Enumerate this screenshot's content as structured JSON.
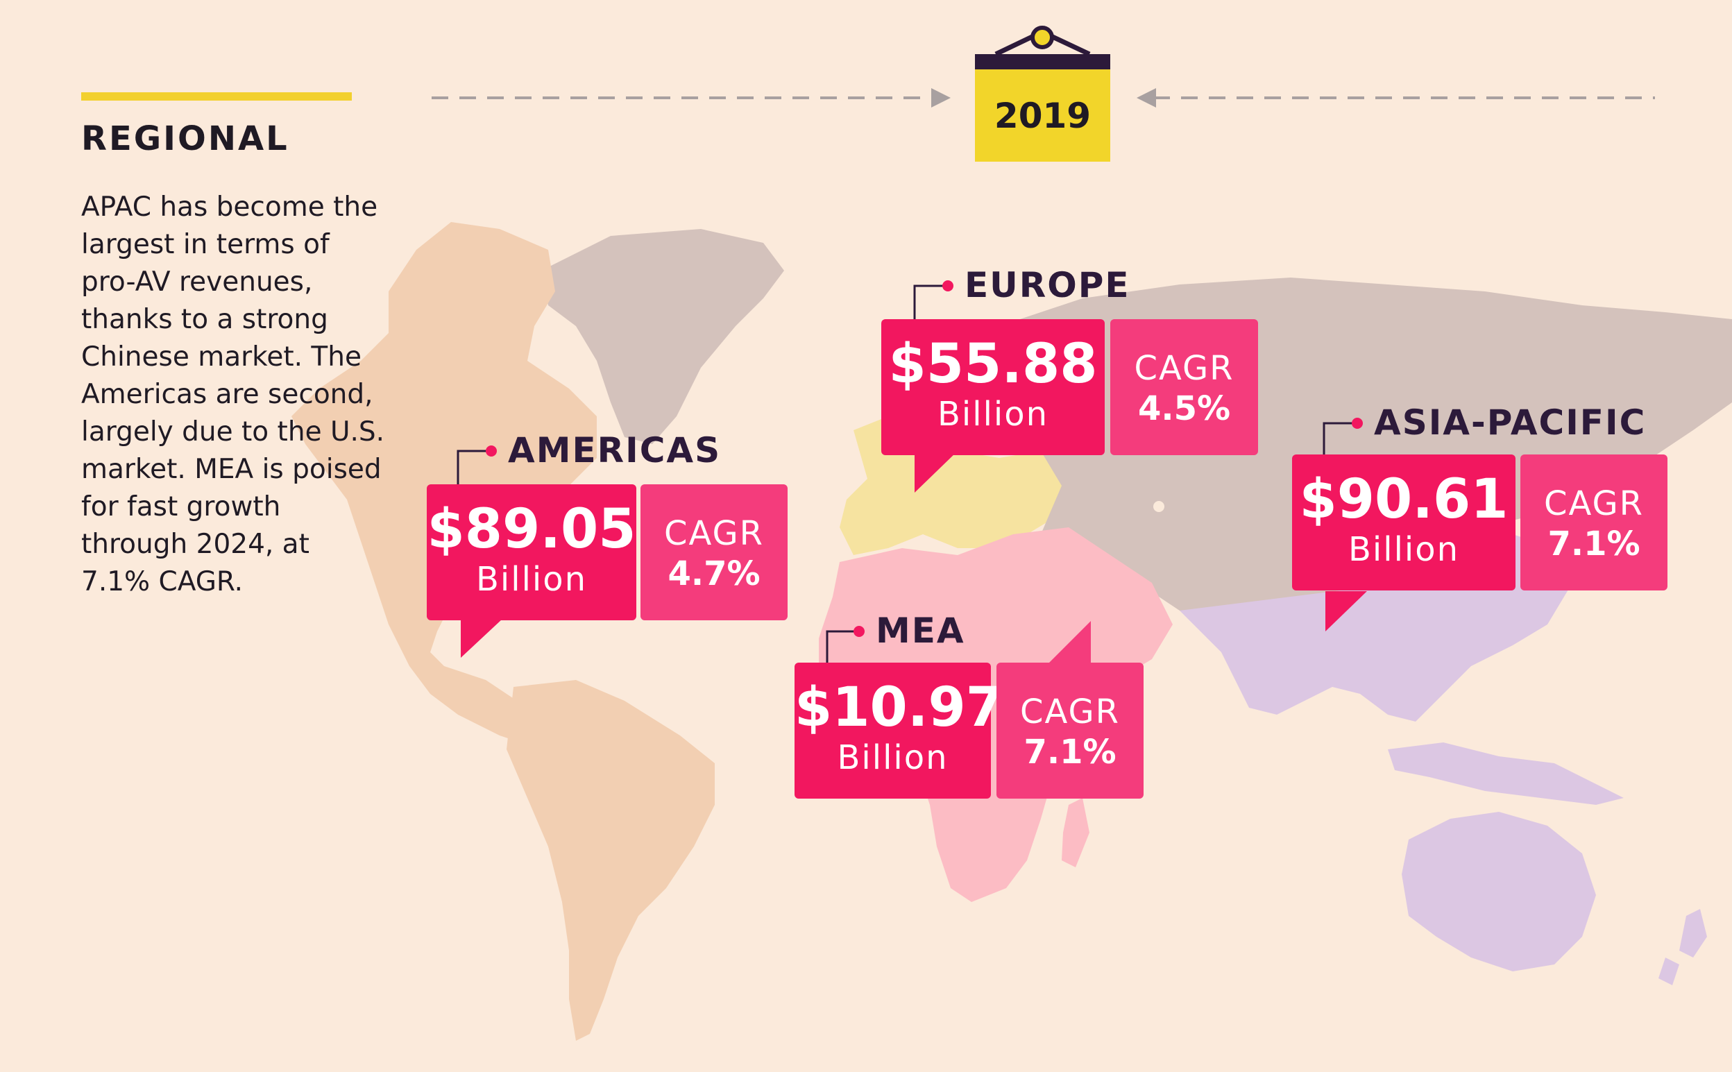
{
  "header": {
    "title": "REGIONAL",
    "intro": "APAC has become the largest in terms of pro-AV revenues, thanks to a strong Chinese market. The Americas are second, largely due to the U.S. market. MEA is poised for fast growth through 2024, at 7.1% CAGR.",
    "year": "2019"
  },
  "colors": {
    "background": "#fbeadb",
    "accent_yellow": "#f2d52a",
    "value_pink": "#f2175f",
    "cagr_pink": "#f43c7c",
    "americas_land": "#f2cfb2",
    "europe_land": "#f6e3a0",
    "mea_land": "#fcbcc4",
    "apac_land": "#dcc7e3",
    "other_land": "#d4c2bc"
  },
  "regions": {
    "americas": {
      "name": "AMERICAS",
      "amount": "$89.05",
      "unit": "Billion",
      "cagr_label": "CAGR",
      "cagr": "4.7%"
    },
    "europe": {
      "name": "EUROPE",
      "amount": "$55.88",
      "unit": "Billion",
      "cagr_label": "CAGR",
      "cagr": "4.5%"
    },
    "mea": {
      "name": "MEA",
      "amount": "$10.97",
      "unit": "Billion",
      "cagr_label": "CAGR",
      "cagr": "7.1%"
    },
    "asia_pacific": {
      "name": "ASIA-PACIFIC",
      "amount": "$90.61",
      "unit": "Billion",
      "cagr_label": "CAGR",
      "cagr": "7.1%"
    }
  }
}
